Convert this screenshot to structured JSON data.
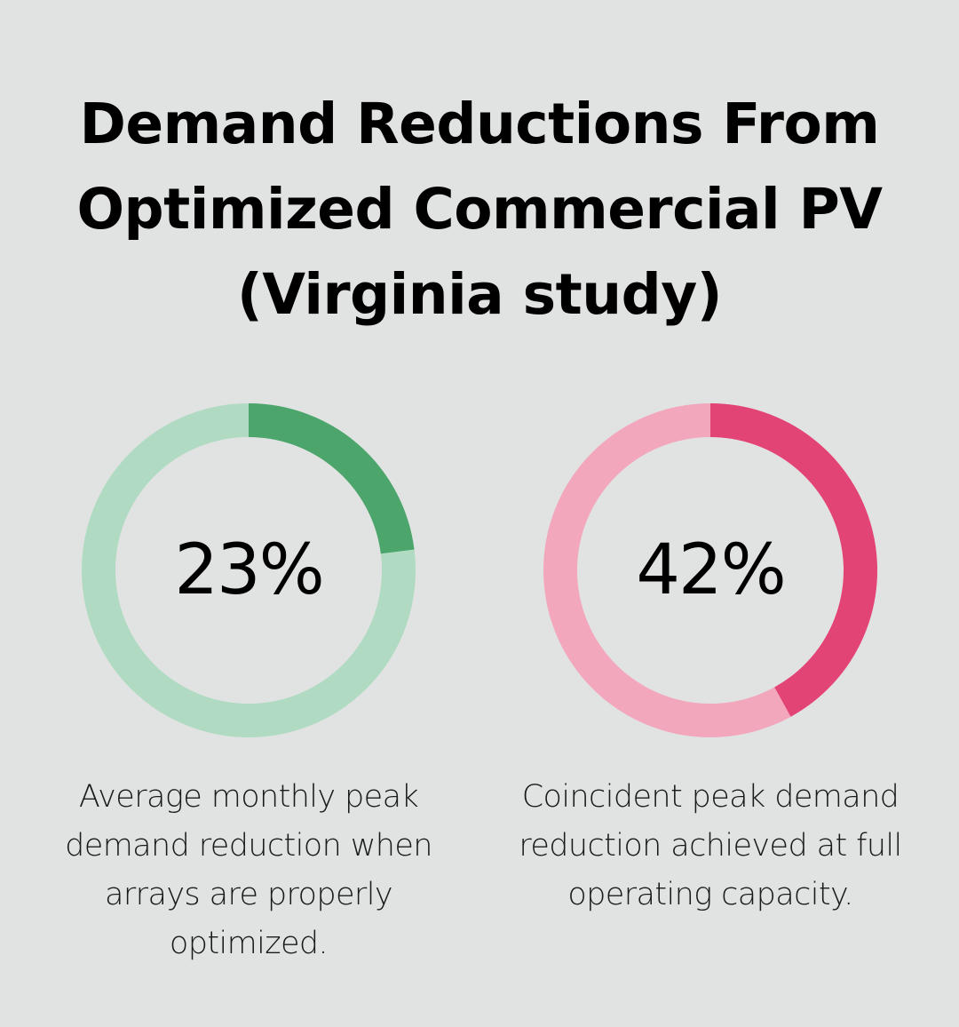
{
  "title_lines": [
    "Demand Reductions From",
    "Optimized Commercial PV",
    "(Virginia study)"
  ],
  "chart_data": [
    {
      "type": "pie",
      "value": 23,
      "value_label": "23%",
      "description": "Average monthly peak demand reduction when arrays are properly optimized.",
      "colors": {
        "value": "#4ca66c",
        "track": "#b0dbc2"
      }
    },
    {
      "type": "pie",
      "value": 42,
      "value_label": "42%",
      "description": "Coincident peak demand reduction achieved at full operating capacity.",
      "colors": {
        "value": "#e34476",
        "track": "#f2a7bd"
      }
    }
  ],
  "background_color": "#e1e3e2"
}
